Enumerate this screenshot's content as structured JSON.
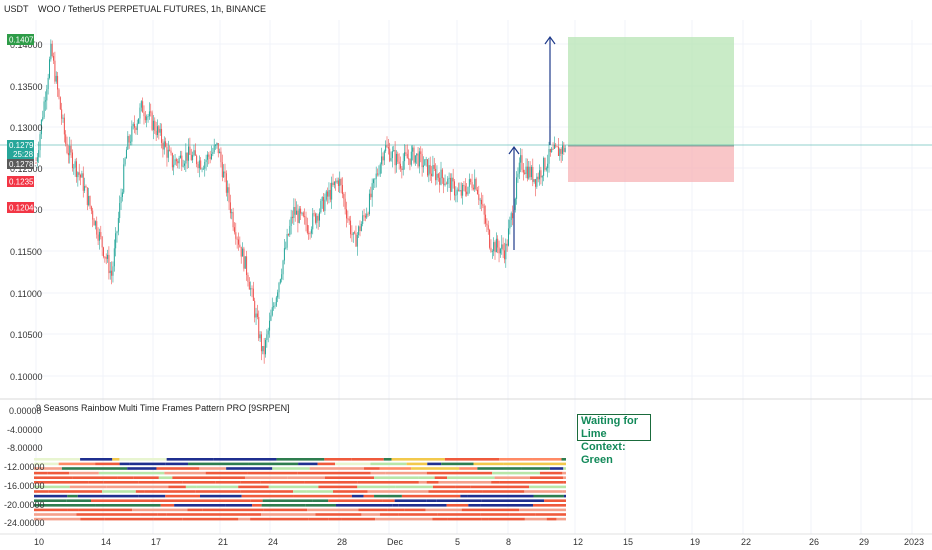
{
  "header": {
    "currency": "USDT",
    "title": "WOO / TetherUS PERPETUAL FUTURES, 1h, BINANCE"
  },
  "price_axis": {
    "labels": [
      "0.14000",
      "0.13500",
      "0.13000",
      "0.12500",
      "0.12000",
      "0.11500",
      "0.11000",
      "0.10500",
      "0.10000"
    ],
    "badges": [
      {
        "text": "0.14077",
        "color": "#2e9c48"
      },
      {
        "text": "0.12795",
        "color": "#26a69a"
      },
      {
        "text": "25:28",
        "color": "#26a69a"
      },
      {
        "text": "0.12782",
        "color": "#5a5a5a"
      },
      {
        "text": "0.12357",
        "color": "#f23645"
      },
      {
        "text": "0.12040",
        "color": "#f23645"
      }
    ]
  },
  "indicator": {
    "title": "9 Seasons Rainbow Multi Time Frames Pattern PRO [9SRPEN]",
    "axis_labels": [
      "0.00000",
      "-4.00000",
      "-8.00000",
      "-12.00000",
      "-16.00000",
      "-20.00000",
      "-24.00000"
    ],
    "status_line1": "Waiting for Lime",
    "status_line2": "Context: Green"
  },
  "time_axis": {
    "labels": [
      "10",
      "14",
      "17",
      "21",
      "24",
      "28",
      "Dec",
      "5",
      "8",
      "12",
      "15",
      "19",
      "22",
      "26",
      "29",
      "2023"
    ]
  },
  "colors": {
    "up": "#26a69a",
    "down": "#ef5350",
    "target_zone": "#b7e4b4",
    "stop_zone": "#f7b3b5",
    "arrow": "#1e3a8a"
  },
  "chart_data": {
    "type": "candlestick",
    "symbol": "WOO / TetherUS PERPETUAL FUTURES",
    "interval": "1h",
    "ylim": [
      0.0975,
      0.1435
    ],
    "approx_close_path": [
      {
        "x": "10",
        "y": 0.126
      },
      {
        "x": "10",
        "y": 0.14
      },
      {
        "x": "11",
        "y": 0.128
      },
      {
        "x": "12",
        "y": 0.124
      },
      {
        "x": "13",
        "y": 0.118
      },
      {
        "x": "14",
        "y": 0.112
      },
      {
        "x": "14",
        "y": 0.128
      },
      {
        "x": "15",
        "y": 0.133
      },
      {
        "x": "16",
        "y": 0.13
      },
      {
        "x": "17",
        "y": 0.126
      },
      {
        "x": "18",
        "y": 0.127
      },
      {
        "x": "19",
        "y": 0.126
      },
      {
        "x": "20",
        "y": 0.128
      },
      {
        "x": "20",
        "y": 0.119
      },
      {
        "x": "21",
        "y": 0.112
      },
      {
        "x": "22",
        "y": 0.102
      },
      {
        "x": "23",
        "y": 0.111
      },
      {
        "x": "24",
        "y": 0.12
      },
      {
        "x": "25",
        "y": 0.118
      },
      {
        "x": "26",
        "y": 0.121
      },
      {
        "x": "27",
        "y": 0.124
      },
      {
        "x": "28",
        "y": 0.116
      },
      {
        "x": "29",
        "y": 0.121
      },
      {
        "x": "30",
        "y": 0.128
      },
      {
        "x": "Dec",
        "y": 0.126
      },
      {
        "x": "2",
        "y": 0.127
      },
      {
        "x": "3",
        "y": 0.125
      },
      {
        "x": "4",
        "y": 0.124
      },
      {
        "x": "5",
        "y": 0.122
      },
      {
        "x": "6",
        "y": 0.124
      },
      {
        "x": "7",
        "y": 0.116
      },
      {
        "x": "8",
        "y": 0.115
      },
      {
        "x": "8",
        "y": 0.126
      },
      {
        "x": "9",
        "y": 0.124
      },
      {
        "x": "10",
        "y": 0.127
      },
      {
        "x": "11",
        "y": 0.1279
      }
    ],
    "position": {
      "entry": 0.12795,
      "target": 0.14077,
      "stop": 0.12357
    }
  }
}
